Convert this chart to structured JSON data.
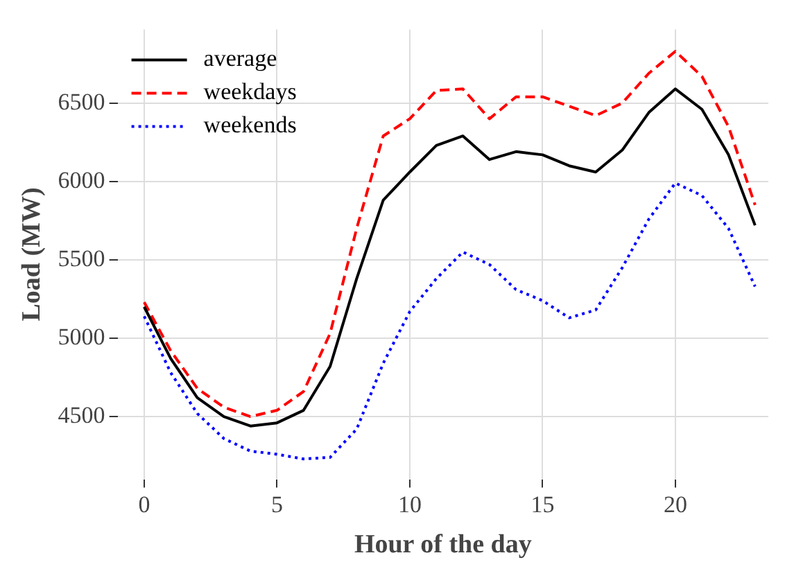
{
  "chart_data": {
    "type": "line",
    "xlabel": "Hour of the day",
    "ylabel": "Load (MW)",
    "x": [
      0,
      1,
      2,
      3,
      4,
      5,
      6,
      7,
      8,
      9,
      10,
      11,
      12,
      13,
      14,
      15,
      16,
      17,
      18,
      19,
      20,
      21,
      22,
      23
    ],
    "series": [
      {
        "name": "average",
        "color": "#000000",
        "line_style": "solid",
        "values": [
          5200,
          4870,
          4620,
          4500,
          4440,
          4460,
          4540,
          4820,
          5380,
          5880,
          6060,
          6230,
          6290,
          6140,
          6190,
          6170,
          6100,
          6060,
          6200,
          6440,
          6590,
          6460,
          6170,
          5720
        ]
      },
      {
        "name": "weekdays",
        "color": "#ff0000",
        "line_style": "dashed",
        "values": [
          5230,
          4920,
          4680,
          4560,
          4500,
          4540,
          4660,
          5030,
          5700,
          6290,
          6400,
          6580,
          6590,
          6400,
          6540,
          6540,
          6480,
          6420,
          6500,
          6690,
          6830,
          6670,
          6350,
          5850
        ]
      },
      {
        "name": "weekends",
        "color": "#0000ff",
        "line_style": "dotted",
        "values": [
          5140,
          4780,
          4520,
          4360,
          4280,
          4260,
          4230,
          4240,
          4420,
          4840,
          5170,
          5380,
          5550,
          5470,
          5310,
          5240,
          5130,
          5180,
          5450,
          5760,
          5990,
          5910,
          5700,
          5330
        ]
      }
    ],
    "xlim": [
      -1,
      23.5
    ],
    "ylim": [
      4100,
      6970
    ],
    "xticks": [
      0,
      5,
      10,
      15,
      20
    ],
    "yticks": [
      4500,
      5000,
      5500,
      6000,
      6500
    ],
    "grid": true,
    "legend": "top left",
    "marker": "none"
  }
}
